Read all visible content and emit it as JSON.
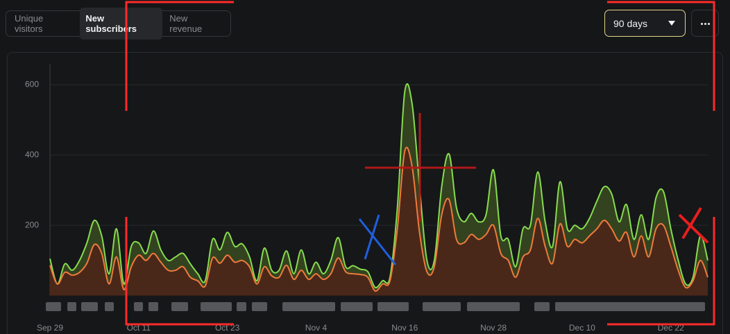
{
  "tabs": [
    "Unique visitors",
    "New subscribers",
    "New revenue"
  ],
  "active_tab": 1,
  "range_selector": "90 days",
  "chart_data": {
    "type": "area",
    "categories": [
      "Sep 29",
      null,
      null,
      null,
      null,
      null,
      null,
      null,
      null,
      null,
      null,
      null,
      "Oct 11",
      null,
      null,
      null,
      null,
      null,
      null,
      null,
      null,
      null,
      null,
      null,
      "Oct 23",
      null,
      null,
      null,
      null,
      null,
      null,
      null,
      null,
      null,
      null,
      null,
      "Nov 4",
      null,
      null,
      null,
      null,
      null,
      null,
      null,
      null,
      null,
      null,
      null,
      "Nov 16",
      null,
      null,
      null,
      null,
      null,
      null,
      null,
      null,
      null,
      null,
      null,
      "Nov 28",
      null,
      null,
      null,
      null,
      null,
      null,
      null,
      null,
      null,
      null,
      null,
      "Dec 10",
      null,
      null,
      null,
      null,
      null,
      null,
      null,
      null,
      null,
      null,
      null,
      "Dec 22",
      null,
      null,
      null,
      null,
      null
    ],
    "series": [
      {
        "color": "#86dc4f",
        "fill": "#34431f",
        "values": [
          105,
          33,
          90,
          72,
          100,
          150,
          214,
          170,
          62,
          190,
          33,
          140,
          150,
          120,
          184,
          130,
          100,
          110,
          120,
          90,
          62,
          42,
          160,
          130,
          180,
          140,
          147,
          110,
          42,
          135,
          72,
          72,
          127,
          62,
          130,
          62,
          95,
          62,
          100,
          165,
          82,
          85,
          75,
          68,
          23,
          42,
          52,
          250,
          580,
          545,
          310,
          100,
          100,
          310,
          403,
          250,
          210,
          234,
          210,
          230,
          358,
          170,
          160,
          82,
          190,
          200,
          352,
          210,
          140,
          324,
          190,
          200,
          190,
          220,
          269,
          310,
          289,
          210,
          259,
          160,
          230,
          160,
          279,
          296,
          190,
          100,
          33,
          52,
          170,
          100
        ]
      },
      {
        "color": "#f07a3c",
        "fill": "#4a2819",
        "values": [
          86,
          33,
          66,
          58,
          66,
          92,
          145,
          120,
          33,
          110,
          17,
          82,
          115,
          100,
          120,
          95,
          72,
          72,
          82,
          52,
          42,
          27,
          107,
          92,
          115,
          95,
          100,
          82,
          33,
          82,
          56,
          52,
          86,
          46,
          72,
          46,
          62,
          46,
          62,
          107,
          68,
          62,
          60,
          52,
          13,
          33,
          42,
          190,
          411,
          367,
          180,
          68,
          82,
          230,
          273,
          160,
          150,
          174,
          160,
          174,
          200,
          120,
          100,
          52,
          110,
          130,
          220,
          140,
          92,
          204,
          140,
          160,
          150,
          170,
          190,
          214,
          190,
          155,
          180,
          110,
          170,
          110,
          190,
          200,
          140,
          72,
          23,
          42,
          100,
          52
        ]
      }
    ],
    "ylim": [
      0,
      660
    ],
    "yticks": [
      200,
      400,
      600
    ],
    "grid": true
  }
}
